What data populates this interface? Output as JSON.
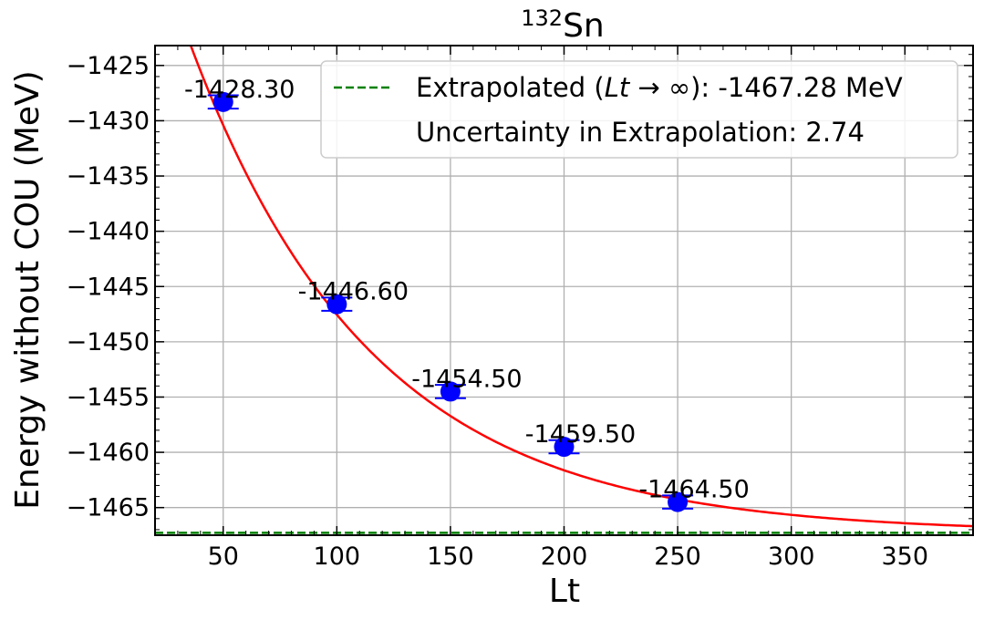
{
  "chart_data": {
    "type": "scatter",
    "title": "Sn",
    "title_superscript": "132",
    "xlabel": "Lt",
    "ylabel": "Energy without COU (MeV)",
    "xlim": [
      20,
      380
    ],
    "ylim": [
      -1467.5,
      -1423.2
    ],
    "xticks": [
      50,
      100,
      150,
      200,
      250,
      300,
      350
    ],
    "yticks": [
      -1425,
      -1430,
      -1435,
      -1440,
      -1445,
      -1450,
      -1455,
      -1460,
      -1465
    ],
    "grid": true,
    "points": [
      {
        "x": 50,
        "y": -1428.3,
        "label": "-1428.30",
        "err": 0.6
      },
      {
        "x": 100,
        "y": -1446.6,
        "label": "-1446.60",
        "err": 0.6
      },
      {
        "x": 150,
        "y": -1454.5,
        "label": "-1454.50",
        "err": 0.6
      },
      {
        "x": 200,
        "y": -1459.5,
        "label": "-1459.50",
        "err": 0.6
      },
      {
        "x": 250,
        "y": -1464.5,
        "label": "-1464.50",
        "err": 0.6
      }
    ],
    "fit": {
      "asymptote": -1467.28,
      "amplitude": 68.9,
      "decay": 0.0125
    },
    "extrapolated_value": -1467.28,
    "colors": {
      "points": "#0000ff",
      "fit": "#ff0000",
      "extrapolation": "#008000",
      "grid": "#b0b0b0"
    },
    "legend": {
      "position": "top-right",
      "entries": [
        {
          "text_before": "Extrapolated (",
          "italic": "Lt",
          "text_after": " → ∞): -1467.28 MeV"
        },
        {
          "text": "Uncertainty in Extrapolation: 2.74"
        }
      ]
    }
  }
}
